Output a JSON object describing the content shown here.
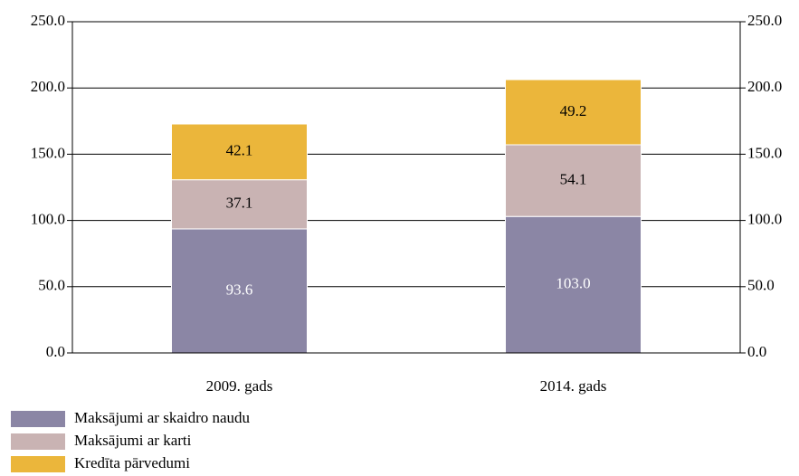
{
  "chart_data": {
    "type": "stacked_bar",
    "categories": [
      "2009. gads",
      "2014. gads"
    ],
    "series": [
      {
        "name": "Maksājumi ar skaidro naudu",
        "color": "#8b86a5",
        "label_color": "#ffffff",
        "values": [
          93.6,
          103.0
        ],
        "value_labels": [
          "93.6",
          "103.0"
        ]
      },
      {
        "name": "Maksājumi ar karti",
        "color": "#c9b3b3",
        "label_color": "#000000",
        "values": [
          37.1,
          54.1
        ]
      },
      {
        "name": "Kredīta pārvedumi",
        "color": "#ebb63b",
        "label_color": "#000000",
        "values": [
          42.1,
          49.2
        ]
      }
    ],
    "ylim": [
      0,
      250
    ],
    "yticks": [
      {
        "value": 0,
        "label": "0.0"
      },
      {
        "value": 50,
        "label": "50.0"
      },
      {
        "value": 100,
        "label": "100.0"
      },
      {
        "value": 150,
        "label": "150.0"
      },
      {
        "value": 200,
        "label": "200.0"
      },
      {
        "value": 250,
        "label": "250.0"
      }
    ],
    "y2lim": [
      0,
      250
    ],
    "y2ticks": [
      {
        "value": 0,
        "label": "0.0"
      },
      {
        "value": 50,
        "label": "50.0"
      },
      {
        "value": 100,
        "label": "100.0"
      },
      {
        "value": 150,
        "label": "150.0"
      },
      {
        "value": 200,
        "label": "200.0"
      },
      {
        "value": 250,
        "label": "250.0"
      }
    ],
    "grid": true,
    "legend": "bottom-left"
  }
}
